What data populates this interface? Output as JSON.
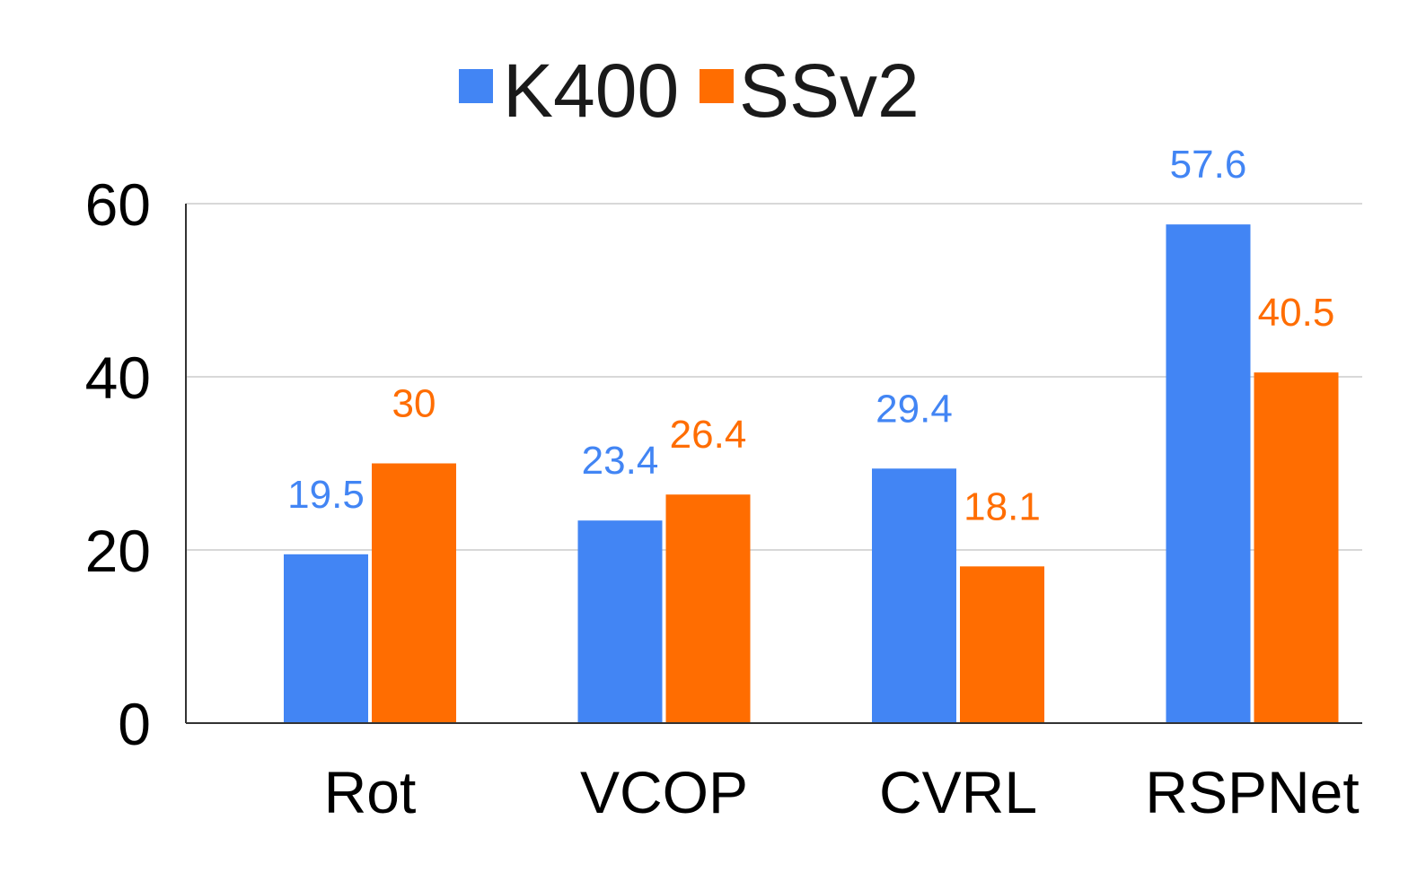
{
  "chart_data": {
    "type": "bar",
    "title": "",
    "xlabel": "",
    "ylabel": "",
    "categories": [
      "Rot",
      "VCOP",
      "CVRL",
      "RSPNet"
    ],
    "series": [
      {
        "name": "K400",
        "color": "#4285f4",
        "values": [
          19.5,
          23.4,
          29.4,
          57.6
        ],
        "labels": [
          "19.5",
          "23.4",
          "29.4",
          "57.6"
        ]
      },
      {
        "name": "SSv2",
        "color": "#ff6d01",
        "values": [
          30,
          26.4,
          18.1,
          40.5
        ],
        "labels": [
          "30",
          "26.4",
          "18.1",
          "40.5"
        ]
      }
    ],
    "ylim": [
      0,
      60
    ],
    "yticks": [
      0,
      20,
      40,
      60
    ],
    "ytick_labels": [
      "0",
      "20",
      "40",
      "60"
    ],
    "grid": true,
    "legend_position": "top-center"
  }
}
